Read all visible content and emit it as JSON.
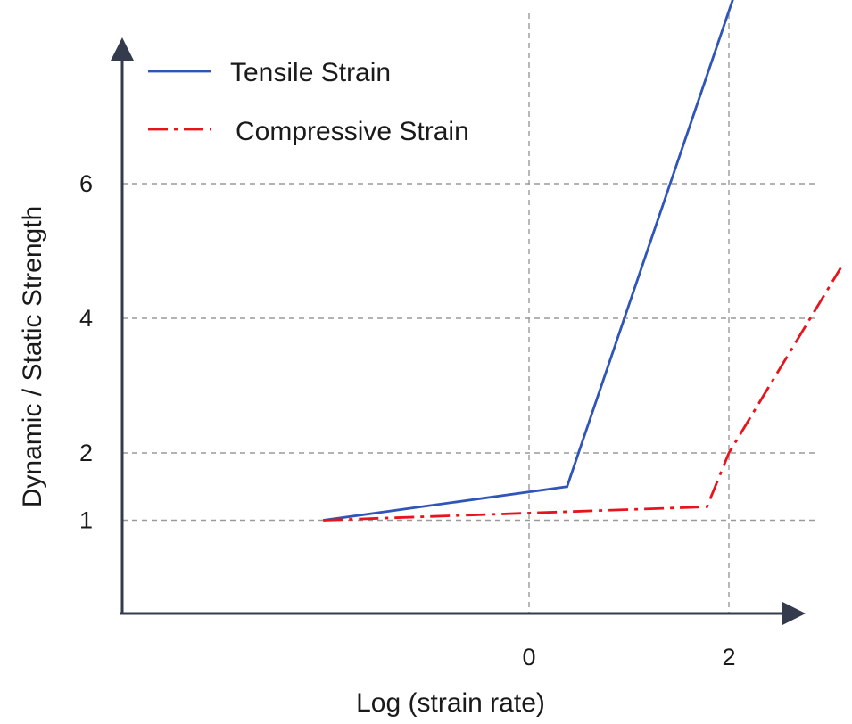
{
  "chart_data": {
    "type": "line",
    "title": "",
    "xlabel": "Log (strain rate)",
    "ylabel": "Dynamic / Static Strength",
    "xlim": [
      -2.06,
      2.6
    ],
    "ylim": [
      -0.4,
      8.9
    ],
    "grid": true,
    "legend_position": "top-left",
    "x_ticks": [
      {
        "value": 0,
        "label": "0"
      },
      {
        "value": 2,
        "label": "2"
      }
    ],
    "y_ticks": [
      {
        "value": 1,
        "label": "1"
      },
      {
        "value": 2,
        "label": "2"
      },
      {
        "value": 4,
        "label": "4"
      },
      {
        "value": 6,
        "label": "6"
      }
    ],
    "series": [
      {
        "name": "Tensile Strain",
        "color": "#2f55b8",
        "style": "solid",
        "x": [
          -2.06,
          0.38,
          2.1
        ],
        "y": [
          1.0,
          1.5,
          9.0
        ]
      },
      {
        "name": "Compressive Strain",
        "color": "#e8141c",
        "style": "dash-dot",
        "x": [
          -2.06,
          1.78,
          2.0,
          3.12
        ],
        "y": [
          1.0,
          1.2,
          2.0,
          4.75
        ]
      }
    ]
  }
}
